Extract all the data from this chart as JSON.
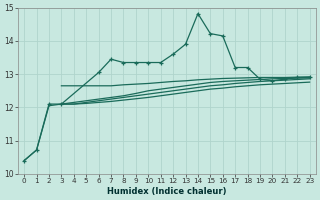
{
  "xlabel": "Humidex (Indice chaleur)",
  "background_color": "#c8e8e0",
  "grid_color": "#b0d4cc",
  "line_color": "#1a6b5a",
  "xlim_min": -0.5,
  "xlim_max": 23.5,
  "ylim_min": 10,
  "ylim_max": 15,
  "yticks": [
    10,
    11,
    12,
    13,
    14,
    15
  ],
  "xticks": [
    0,
    1,
    2,
    3,
    4,
    5,
    6,
    7,
    8,
    9,
    10,
    11,
    12,
    13,
    14,
    15,
    16,
    17,
    18,
    19,
    20,
    21,
    22,
    23
  ],
  "zigzag_x": [
    0,
    1,
    2,
    3,
    6,
    7,
    8,
    9,
    10,
    11,
    12,
    13,
    14,
    15,
    16,
    17,
    18,
    19,
    20,
    21,
    22,
    23
  ],
  "zigzag_y": [
    10.4,
    10.72,
    12.1,
    12.1,
    13.05,
    13.45,
    13.35,
    13.35,
    13.35,
    13.35,
    13.6,
    13.9,
    14.82,
    14.22,
    14.15,
    13.2,
    13.2,
    12.85,
    12.8,
    12.85,
    12.9,
    12.9
  ],
  "horiz1_x": [
    3,
    4,
    5,
    6,
    7,
    8,
    9,
    10,
    11,
    12,
    13,
    14,
    15,
    16,
    17,
    18,
    19,
    20,
    21,
    22,
    23
  ],
  "horiz1_y": [
    12.65,
    12.65,
    12.65,
    12.65,
    12.65,
    12.68,
    12.7,
    12.72,
    12.75,
    12.78,
    12.8,
    12.83,
    12.85,
    12.87,
    12.88,
    12.89,
    12.9,
    12.9,
    12.9,
    12.91,
    12.92
  ],
  "horiz2_x": [
    3,
    4,
    5,
    6,
    7,
    8,
    9,
    10,
    11,
    12,
    13,
    14,
    15,
    16,
    17,
    18,
    19,
    20,
    21,
    22,
    23
  ],
  "horiz2_y": [
    12.1,
    12.1,
    12.15,
    12.2,
    12.25,
    12.3,
    12.35,
    12.4,
    12.45,
    12.5,
    12.55,
    12.6,
    12.65,
    12.68,
    12.72,
    12.75,
    12.78,
    12.8,
    12.82,
    12.84,
    12.86
  ],
  "horiz3_x": [
    3,
    4,
    5,
    6,
    7,
    8,
    9,
    10,
    11,
    12,
    13,
    14,
    15,
    16,
    17,
    18,
    19,
    20,
    21,
    22,
    23
  ],
  "horiz3_y": [
    12.1,
    12.1,
    12.12,
    12.15,
    12.18,
    12.22,
    12.26,
    12.3,
    12.35,
    12.4,
    12.45,
    12.5,
    12.55,
    12.58,
    12.62,
    12.65,
    12.68,
    12.7,
    12.72,
    12.74,
    12.76
  ],
  "rising_x": [
    0,
    1,
    2,
    3,
    4,
    5,
    6,
    7,
    8,
    9,
    10,
    11,
    12,
    13,
    14,
    15,
    16,
    17,
    18,
    19,
    20,
    21,
    22,
    23
  ],
  "rising_y": [
    10.4,
    10.72,
    12.05,
    12.1,
    12.15,
    12.2,
    12.25,
    12.3,
    12.35,
    12.42,
    12.5,
    12.55,
    12.6,
    12.65,
    12.7,
    12.75,
    12.78,
    12.8,
    12.82,
    12.84,
    12.86,
    12.87,
    12.88,
    12.89
  ]
}
